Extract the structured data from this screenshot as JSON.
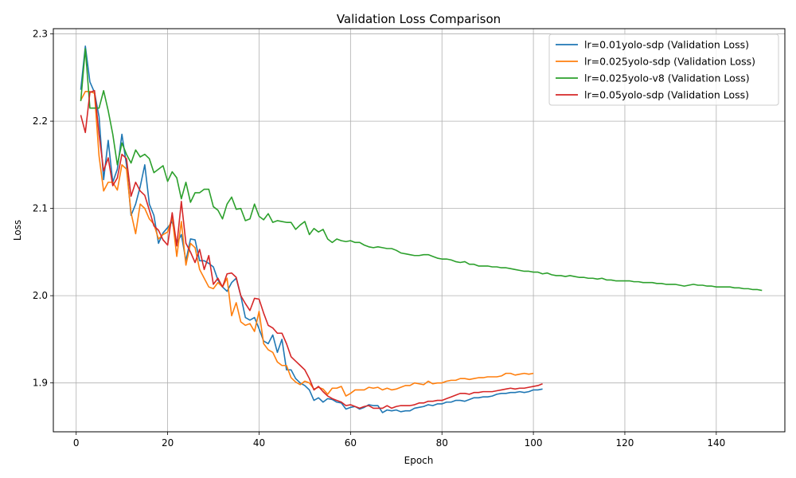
{
  "chart_data": {
    "type": "line",
    "title": "Validation Loss Comparison",
    "xlabel": "Epoch",
    "ylabel": "Loss",
    "xlim": [
      -5,
      155
    ],
    "ylim": [
      1.844,
      2.306
    ],
    "xticks": [
      0,
      20,
      40,
      60,
      80,
      100,
      120,
      140
    ],
    "yticks": [
      1.9,
      2.0,
      2.1,
      2.2,
      2.3
    ],
    "xtick_labels": [
      "0",
      "20",
      "40",
      "60",
      "80",
      "100",
      "120",
      "140"
    ],
    "ytick_labels": [
      "1.9",
      "2.0",
      "2.1",
      "2.2",
      "2.3"
    ],
    "grid": true,
    "legend_position": "upper right",
    "series": [
      {
        "name": "lr=0.01yolo-sdp (Validation Loss)",
        "color": "#1f77b4",
        "x_start": 1,
        "values": [
          2.236,
          2.286,
          2.245,
          2.233,
          2.205,
          2.133,
          2.178,
          2.13,
          2.145,
          2.185,
          2.15,
          2.092,
          2.105,
          2.125,
          2.15,
          2.105,
          2.092,
          2.06,
          2.072,
          2.078,
          2.085,
          2.06,
          2.07,
          2.04,
          2.065,
          2.064,
          2.04,
          2.04,
          2.037,
          2.033,
          2.018,
          2.01,
          2.005,
          2.015,
          2.02,
          2.0,
          1.975,
          1.972,
          1.975,
          1.962,
          1.948,
          1.945,
          1.955,
          1.935,
          1.95,
          1.915,
          1.915,
          1.905,
          1.9,
          1.897,
          1.892,
          1.88,
          1.883,
          1.878,
          1.882,
          1.881,
          1.878,
          1.877,
          1.87,
          1.872,
          1.873,
          1.87,
          1.872,
          1.875,
          1.874,
          1.874,
          1.866,
          1.869,
          1.868,
          1.869,
          1.867,
          1.868,
          1.868,
          1.871,
          1.872,
          1.873,
          1.875,
          1.874,
          1.876,
          1.876,
          1.878,
          1.878,
          1.88,
          1.88,
          1.879,
          1.881,
          1.883,
          1.883,
          1.884,
          1.884,
          1.885,
          1.887,
          1.888,
          1.888,
          1.889,
          1.889,
          1.89,
          1.889,
          1.89,
          1.892,
          1.892,
          1.893
        ]
      },
      {
        "name": "lr=0.025yolo-sdp (Validation Loss)",
        "color": "#ff7f0e",
        "x_start": 1,
        "values": [
          2.224,
          2.234,
          2.234,
          2.232,
          2.16,
          2.12,
          2.13,
          2.13,
          2.121,
          2.15,
          2.145,
          2.095,
          2.071,
          2.105,
          2.1,
          2.088,
          2.082,
          2.065,
          2.07,
          2.073,
          2.09,
          2.045,
          2.085,
          2.035,
          2.06,
          2.055,
          2.03,
          2.02,
          2.01,
          2.008,
          2.015,
          2.01,
          2.02,
          1.977,
          1.992,
          1.97,
          1.966,
          1.968,
          1.959,
          1.982,
          1.945,
          1.938,
          1.935,
          1.924,
          1.92,
          1.92,
          1.906,
          1.901,
          1.898,
          1.902,
          1.9,
          1.893,
          1.895,
          1.893,
          1.887,
          1.894,
          1.894,
          1.896,
          1.885,
          1.888,
          1.892,
          1.892,
          1.892,
          1.895,
          1.894,
          1.895,
          1.892,
          1.894,
          1.892,
          1.893,
          1.895,
          1.897,
          1.897,
          1.9,
          1.899,
          1.898,
          1.902,
          1.899,
          1.9,
          1.9,
          1.902,
          1.903,
          1.903,
          1.905,
          1.905,
          1.904,
          1.905,
          1.906,
          1.906,
          1.907,
          1.907,
          1.907,
          1.908,
          1.911,
          1.911,
          1.909,
          1.91,
          1.911,
          1.91,
          1.911
        ]
      },
      {
        "name": "lr=0.025yolo-v8 (Validation Loss)",
        "color": "#2ca02c",
        "x_start": 1,
        "values": [
          2.223,
          2.283,
          2.215,
          2.215,
          2.215,
          2.235,
          2.212,
          2.185,
          2.15,
          2.175,
          2.162,
          2.152,
          2.167,
          2.159,
          2.162,
          2.157,
          2.141,
          2.145,
          2.149,
          2.131,
          2.142,
          2.135,
          2.111,
          2.13,
          2.107,
          2.118,
          2.118,
          2.122,
          2.122,
          2.102,
          2.098,
          2.088,
          2.105,
          2.113,
          2.099,
          2.1,
          2.086,
          2.088,
          2.105,
          2.091,
          2.087,
          2.094,
          2.084,
          2.086,
          2.085,
          2.084,
          2.084,
          2.076,
          2.081,
          2.085,
          2.07,
          2.077,
          2.073,
          2.076,
          2.065,
          2.061,
          2.065,
          2.063,
          2.062,
          2.063,
          2.061,
          2.061,
          2.058,
          2.056,
          2.055,
          2.056,
          2.055,
          2.054,
          2.054,
          2.052,
          2.049,
          2.048,
          2.047,
          2.046,
          2.046,
          2.047,
          2.047,
          2.045,
          2.043,
          2.042,
          2.042,
          2.041,
          2.039,
          2.038,
          2.039,
          2.036,
          2.036,
          2.034,
          2.034,
          2.034,
          2.033,
          2.033,
          2.032,
          2.032,
          2.031,
          2.03,
          2.029,
          2.028,
          2.028,
          2.027,
          2.027,
          2.025,
          2.026,
          2.024,
          2.023,
          2.023,
          2.022,
          2.023,
          2.022,
          2.021,
          2.021,
          2.02,
          2.02,
          2.019,
          2.02,
          2.018,
          2.018,
          2.017,
          2.017,
          2.017,
          2.017,
          2.016,
          2.016,
          2.015,
          2.015,
          2.015,
          2.014,
          2.014,
          2.013,
          2.013,
          2.013,
          2.012,
          2.011,
          2.012,
          2.013,
          2.012,
          2.012,
          2.011,
          2.011,
          2.01,
          2.01,
          2.01,
          2.01,
          2.009,
          2.009,
          2.008,
          2.008,
          2.007,
          2.007,
          2.006
        ]
      },
      {
        "name": "lr=0.05yolo-sdp (Validation Loss)",
        "color": "#d62728",
        "x_start": 1,
        "values": [
          2.207,
          2.187,
          2.233,
          2.235,
          2.185,
          2.143,
          2.158,
          2.126,
          2.135,
          2.162,
          2.157,
          2.114,
          2.13,
          2.12,
          2.115,
          2.098,
          2.08,
          2.075,
          2.064,
          2.058,
          2.095,
          2.057,
          2.108,
          2.06,
          2.05,
          2.038,
          2.053,
          2.03,
          2.046,
          2.013,
          2.02,
          2.01,
          2.025,
          2.026,
          2.021,
          2.0,
          1.991,
          1.983,
          1.997,
          1.996,
          1.98,
          1.966,
          1.963,
          1.957,
          1.957,
          1.945,
          1.93,
          1.925,
          1.92,
          1.915,
          1.905,
          1.892,
          1.896,
          1.89,
          1.885,
          1.882,
          1.88,
          1.878,
          1.874,
          1.875,
          1.873,
          1.871,
          1.873,
          1.874,
          1.871,
          1.871,
          1.871,
          1.874,
          1.871,
          1.873,
          1.874,
          1.874,
          1.874,
          1.875,
          1.877,
          1.877,
          1.879,
          1.879,
          1.88,
          1.88,
          1.882,
          1.884,
          1.886,
          1.888,
          1.888,
          1.887,
          1.889,
          1.889,
          1.89,
          1.89,
          1.89,
          1.891,
          1.892,
          1.893,
          1.894,
          1.893,
          1.894,
          1.894,
          1.895,
          1.896,
          1.897,
          1.899
        ]
      }
    ]
  }
}
